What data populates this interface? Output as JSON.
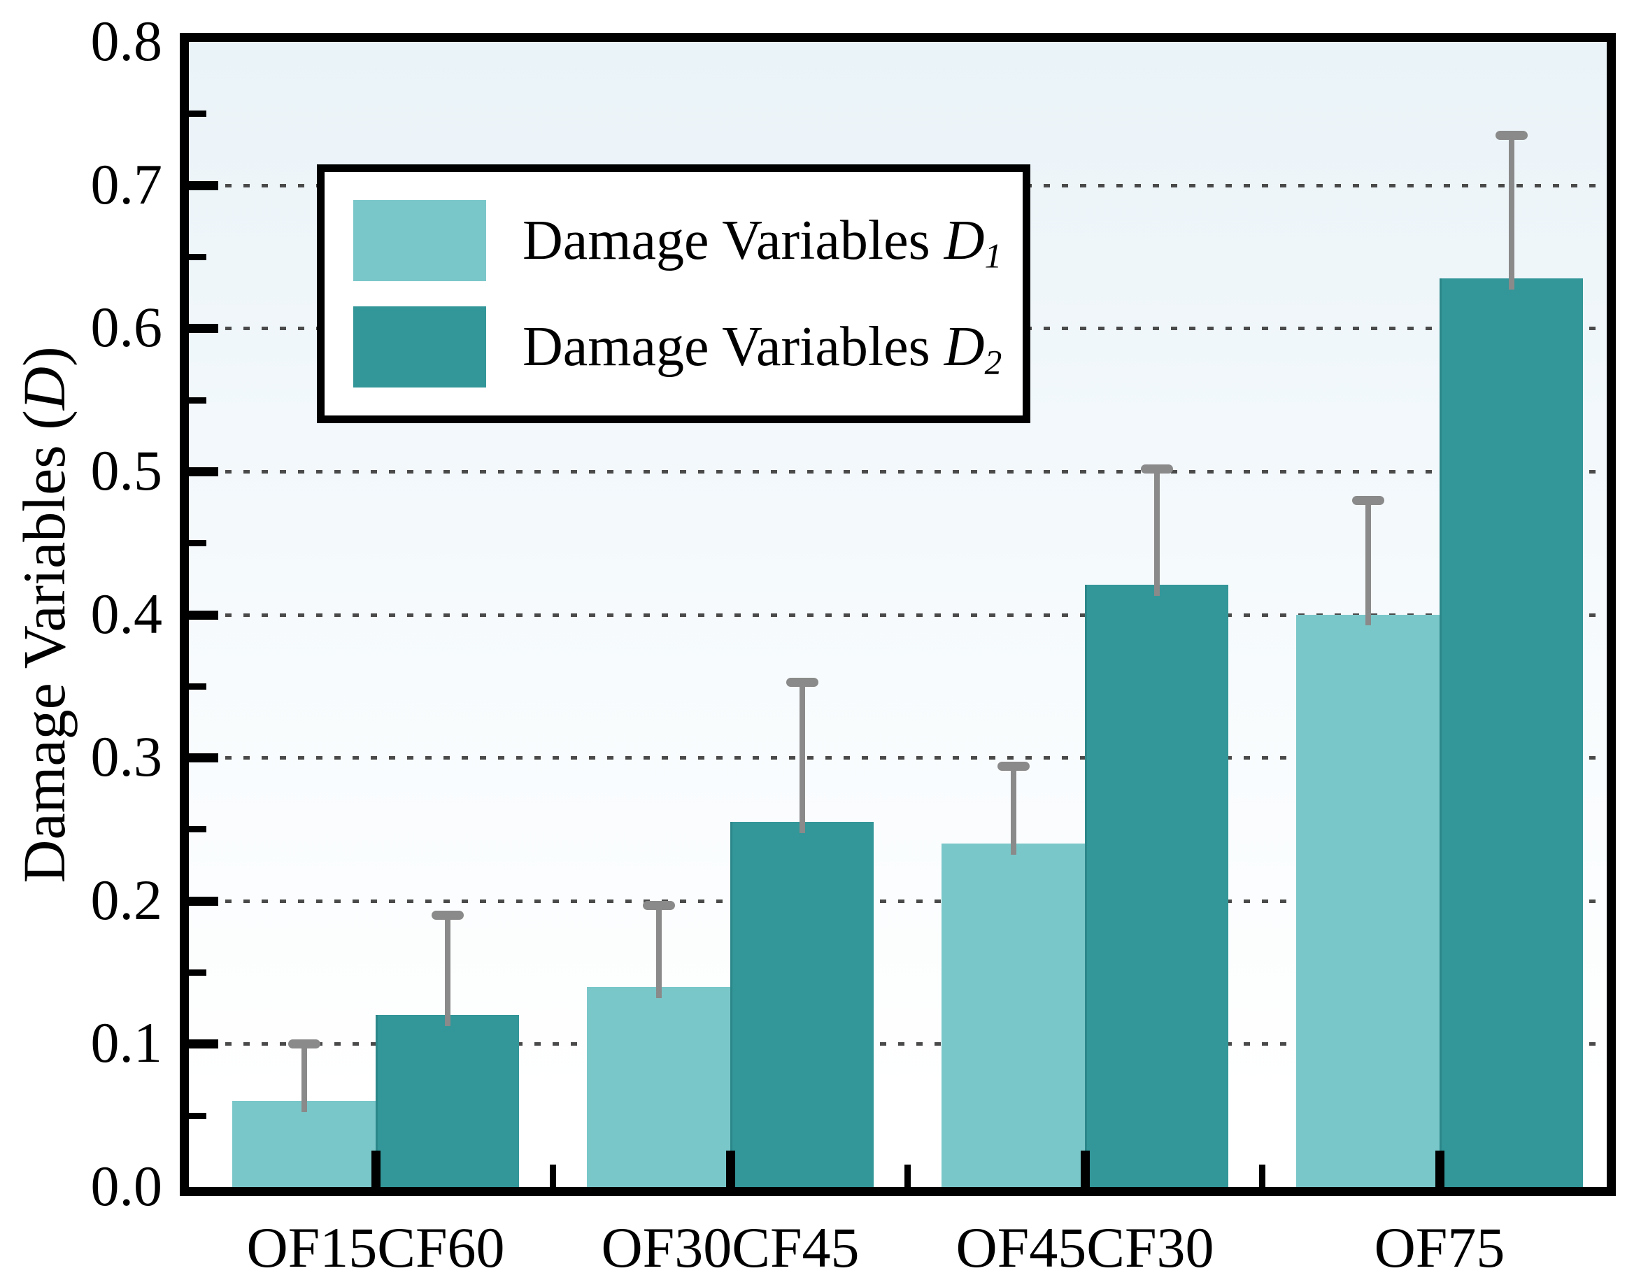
{
  "chart_data": {
    "type": "bar",
    "title": "",
    "categories": [
      "OF15CF60",
      "OF30CF45",
      "OF45CF30",
      "OF75"
    ],
    "series": [
      {
        "name_main": "Damage Variables",
        "name_var": "D",
        "name_sub": "1",
        "color": "#7ac7c9",
        "values": [
          0.06,
          0.14,
          0.24,
          0.4
        ],
        "error_plus": [
          0.04,
          0.057,
          0.054,
          0.08
        ]
      },
      {
        "name_main": "Damage Variables",
        "name_var": "D",
        "name_sub": "2",
        "color": "#339698",
        "values": [
          0.12,
          0.255,
          0.421,
          0.635
        ],
        "error_plus": [
          0.07,
          0.098,
          0.081,
          0.1
        ]
      }
    ],
    "ylabel_main": "Damage Variables (",
    "ylabel_var": "D",
    "ylabel_suffix": ")",
    "xlabel": "",
    "ylim": [
      0.0,
      0.8
    ],
    "ytick_step": 0.1,
    "ytick_minor_step": 0.05,
    "ytick_labels": [
      "0.0",
      "0.1",
      "0.2",
      "0.3",
      "0.4",
      "0.5",
      "0.6",
      "0.7",
      "0.8"
    ],
    "grid": "horizontal dotted lines at 0.1 through 0.7",
    "legend_position": "top-left inside plot",
    "error_bar_color": "#8a8a8a",
    "axis_color": "#000000",
    "gridline_color": "#4a4a4a",
    "plot_bg_top": "#eaf3f8",
    "plot_bg_bottom": "#ffffff"
  }
}
